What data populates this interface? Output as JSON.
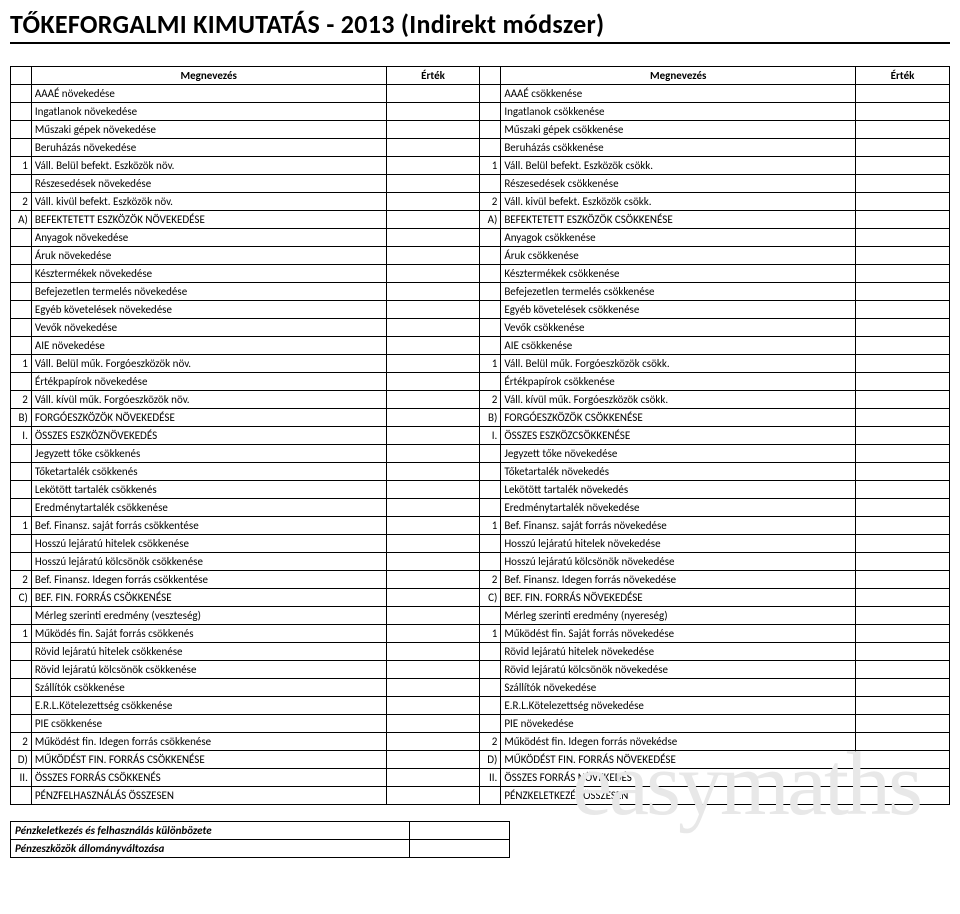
{
  "title": "TŐKEFORGALMI KIMUTATÁS - 2013 (Indirekt módszer)",
  "headers": {
    "name": "Megnevezés",
    "value": "Érték"
  },
  "rows": [
    {
      "l_idx": "",
      "l_label": "AAAÉ növekedése",
      "r_idx": "",
      "r_label": "AAAÉ csökkenése"
    },
    {
      "l_idx": "",
      "l_label": "Ingatlanok növekedése",
      "r_idx": "",
      "r_label": "Ingatlanok csökkenése"
    },
    {
      "l_idx": "",
      "l_label": "Műszaki gépek növekedése",
      "r_idx": "",
      "r_label": "Műszaki gépek csökkenése"
    },
    {
      "l_idx": "",
      "l_label": "Beruházás növekedése",
      "r_idx": "",
      "r_label": "Beruházás csökkenése"
    },
    {
      "l_idx": "1",
      "l_label": "Váll. Belül befekt. Eszközök növ.",
      "r_idx": "1",
      "r_label": "Váll. Belül befekt. Eszközök csökk."
    },
    {
      "l_idx": "",
      "l_label": "Részesedések növekedése",
      "r_idx": "",
      "r_label": "Részesedések csökkenése"
    },
    {
      "l_idx": "2",
      "l_label": "Váll. kivül befekt. Eszközök növ.",
      "r_idx": "2",
      "r_label": "Váll. kivül befekt. Eszközök csökk."
    },
    {
      "l_idx": "A)",
      "l_label": "BEFEKTETETT ESZKÖZÖK NÖVEKEDÉSE",
      "r_idx": "A)",
      "r_label": "BEFEKTETETT ESZKÖZÖK CSÖKKENÉSE"
    },
    {
      "l_idx": "",
      "l_label": "Anyagok növekedése",
      "r_idx": "",
      "r_label": "Anyagok csökkenése"
    },
    {
      "l_idx": "",
      "l_label": "Áruk növekedése",
      "r_idx": "",
      "r_label": "Áruk csökkenése"
    },
    {
      "l_idx": "",
      "l_label": "Késztermékek növekedése",
      "r_idx": "",
      "r_label": "Késztermékek csökkenése"
    },
    {
      "l_idx": "",
      "l_label": "Befejezetlen termelés növekedése",
      "r_idx": "",
      "r_label": "Befejezetlen termelés csökkenése"
    },
    {
      "l_idx": "",
      "l_label": "Egyéb követelések növekedése",
      "r_idx": "",
      "r_label": "Egyéb követelések csökkenése"
    },
    {
      "l_idx": "",
      "l_label": "Vevők növekedése",
      "r_idx": "",
      "r_label": "Vevők csökkenése"
    },
    {
      "l_idx": "",
      "l_label": "AIE növekedése",
      "l_indent": true,
      "r_idx": "",
      "r_label": "AIE csökkenése"
    },
    {
      "l_idx": "1",
      "l_label": "Váll. Belül műk. Forgóeszközök növ.",
      "r_idx": "1",
      "r_label": "Váll. Belül műk. Forgóeszközök csökk."
    },
    {
      "l_idx": "",
      "l_label": "Értékpapírok növekedése",
      "r_idx": "",
      "r_label": "Értékpapírok csökkenése"
    },
    {
      "l_idx": "2",
      "l_label": "Váll. kívül műk. Forgóeszközök növ.",
      "r_idx": "2",
      "r_label": "Váll. kívül műk. Forgóeszközök csökk."
    },
    {
      "l_idx": "B)",
      "l_label": "FORGÓESZKÖZÖK NÖVEKEDÉSE",
      "r_idx": "B)",
      "r_label": "FORGÓESZKÖZÖK CSÖKKENÉSE"
    },
    {
      "l_idx": "I.",
      "l_label": "ÖSSZES ESZKÖZNÖVEKEDÉS",
      "r_idx": "I.",
      "r_label": "ÖSSZES ESZKÖZCSÖKKENÉSE"
    },
    {
      "l_idx": "",
      "l_label": "Jegyzett tőke csökkenés",
      "r_idx": "",
      "r_label": "Jegyzett tőke növekedése"
    },
    {
      "l_idx": "",
      "l_label": "Tőketartalék csökkenés",
      "l_indent": true,
      "r_idx": "",
      "r_label": "Tőketartalék növekedés"
    },
    {
      "l_idx": "",
      "l_label": "Lekötött tartalék csökkenés",
      "l_indent": true,
      "r_idx": "",
      "r_label": "Lekötött tartalék növekedés"
    },
    {
      "l_idx": "",
      "l_label": "Eredménytartalék csökkenése",
      "r_idx": "",
      "r_label": "Eredménytartalék növekedése"
    },
    {
      "l_idx": "1",
      "l_label": "Bef. Finansz. saját forrás csökkentése",
      "r_idx": "1",
      "r_label": "Bef. Finansz. saját forrás növekedése"
    },
    {
      "l_idx": "",
      "l_label": "Hosszú lejáratú hitelek csökkenése",
      "r_idx": "",
      "r_label": "Hosszú lejáratú hitelek növekedése"
    },
    {
      "l_idx": "",
      "l_label": "Hosszú lejáratú kölcsönök csökkenése",
      "r_idx": "",
      "r_label": "Hosszú lejáratú kölcsönök növekedése"
    },
    {
      "l_idx": "2",
      "l_label": "Bef. Finansz. Idegen forrás csökkentése",
      "r_idx": "2",
      "r_label": "Bef. Finansz. Idegen forrás növekedése"
    },
    {
      "l_idx": "C)",
      "l_label": "BEF. FIN. FORRÁS CSÖKKENÉSE",
      "r_idx": "C)",
      "r_label": "BEF. FIN. FORRÁS NÖVEKEDÉSE"
    },
    {
      "l_idx": "",
      "l_label": "Mérleg szerinti eredmény (veszteség)",
      "r_idx": "",
      "r_label": "Mérleg szerinti eredmény (nyereség)"
    },
    {
      "l_idx": "1",
      "l_label": "Működés fin. Saját forrás csökkenés",
      "r_idx": "1",
      "r_label": "Működést fin. Saját forrás növekedése"
    },
    {
      "l_idx": "",
      "l_label": "Rövid lejáratú hitelek csökkenése",
      "r_idx": "",
      "r_label": "Rövid lejáratú hitelek növekedése"
    },
    {
      "l_idx": "",
      "l_label": "Rövid lejáratú kölcsönök csökkenése",
      "r_idx": "",
      "r_label": "Rövid lejáratú kölcsönök növekedése"
    },
    {
      "l_idx": "",
      "l_label": "Szállítók csökkenése",
      "r_idx": "",
      "r_label": "Szállítók növekedése"
    },
    {
      "l_idx": "",
      "l_label": "E.R.L.Kötelezettség csökkenése",
      "r_idx": "",
      "r_label": "E.R.L.Kötelezettség növekedése"
    },
    {
      "l_idx": "",
      "l_label": "PIE csökkenése",
      "l_indent": true,
      "r_idx": "",
      "r_label": "PIE növekedése"
    },
    {
      "l_idx": "2",
      "l_label": "Működést fin. Idegen forrás csökkenése",
      "r_idx": "2",
      "r_label": "Működést fin. Idegen forrás növekédse"
    },
    {
      "l_idx": "D)",
      "l_label": "MŰKÖDÉST FIN. FORRÁS CSÖKKENÉSE",
      "r_idx": "D)",
      "r_label": "MŰKÖDÉST FIN. FORRÁS NÖVEKEDÉSE"
    },
    {
      "l_idx": "II.",
      "l_label": "ÖSSZES FORRÁS CSÖKKENÉS",
      "r_idx": "II.",
      "r_label": "ÖSSZES FORRÁS NÖVEKEDÉS"
    },
    {
      "l_idx": "",
      "l_label": "PÉNZFELHASZNÁLÁS ÖSSZESEN",
      "r_idx": "",
      "r_label": "PÉNZKELETKEZÉS ÖSSZESEN"
    }
  ],
  "footer_rows": [
    "Pénzkeletkezés és felhasználás különbözete",
    "Pénzeszközök állományváltozása"
  ],
  "watermark": "easymaths"
}
